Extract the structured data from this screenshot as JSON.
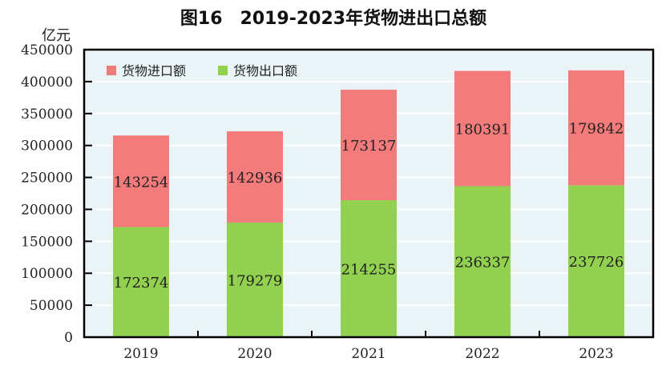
{
  "chart_data": {
    "type": "bar",
    "stacked": true,
    "title": "图16　2019-2023年货物进出口总额",
    "ylabel": "亿元",
    "xlabel": "",
    "categories": [
      "2019",
      "2020",
      "2021",
      "2022",
      "2023"
    ],
    "series": [
      {
        "name": "货物出口额",
        "color": "#92D050",
        "values": [
          172374,
          179279,
          214255,
          236337,
          237726
        ]
      },
      {
        "name": "货物进口额",
        "color": "#F47B7B",
        "values": [
          143254,
          142936,
          173137,
          180391,
          179842
        ]
      }
    ],
    "legend_order": [
      1,
      0
    ],
    "legend_placement": "top-left",
    "ylim": [
      0,
      450000
    ],
    "yticks": [
      0,
      50000,
      100000,
      150000,
      200000,
      250000,
      300000,
      350000,
      400000,
      450000
    ],
    "grid": true,
    "plot_background": "#EAF4F7"
  }
}
